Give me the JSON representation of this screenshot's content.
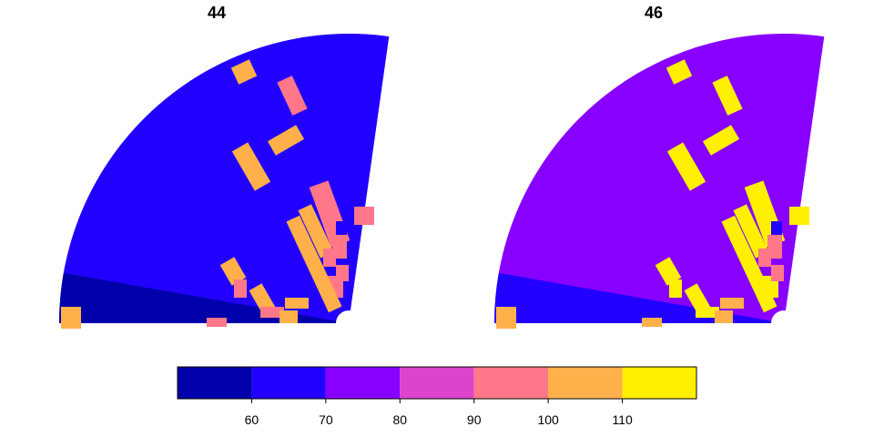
{
  "chart_data": {
    "type": "heatmap",
    "palette": [
      "#0000AA",
      "#2200FF",
      "#8800FF",
      "#DD44CC",
      "#FF7788",
      "#FFB04A",
      "#FFF000"
    ],
    "bins": [
      50,
      60,
      70,
      80,
      90,
      100,
      110,
      120
    ],
    "panels": [
      {
        "title": "44",
        "background": "#2200FF",
        "low_sector_color": "#0000AA",
        "cells": [
          {
            "color": "#FFB04A"
          },
          {
            "color": "#FF7788"
          },
          {
            "color": "#FFB04A"
          },
          {
            "color": "#FFB04A"
          },
          {
            "color": "#FF7788"
          },
          {
            "color": "#FFB04A"
          },
          {
            "color": "#FF7788"
          },
          {
            "color": "#FF7788"
          },
          {
            "color": "#2200FF"
          },
          {
            "color": "#FF7788"
          },
          {
            "color": "#FFB04A"
          },
          {
            "color": "#FF7788"
          },
          {
            "color": "#FF7788"
          },
          {
            "color": "#FFB04A"
          },
          {
            "color": "#FF7788"
          },
          {
            "color": "#FFB04A"
          },
          {
            "color": "#FF7788"
          },
          {
            "color": "#FFB04A"
          },
          {
            "color": "#FFB04A"
          },
          {
            "color": "#FF7788"
          },
          {
            "color": "#FFB04A"
          }
        ]
      },
      {
        "title": "46",
        "background": "#8800FF",
        "low_sector_color": "#2200FF",
        "cells": [
          {
            "color": "#FFF000"
          },
          {
            "color": "#FFF000"
          },
          {
            "color": "#FFF000"
          },
          {
            "color": "#FFF000"
          },
          {
            "color": "#FFF000"
          },
          {
            "color": "#FFF000"
          },
          {
            "color": "#FFF000"
          },
          {
            "color": "#FFF000"
          },
          {
            "color": "#2200FF"
          },
          {
            "color": "#FF7788"
          },
          {
            "color": "#FFF000"
          },
          {
            "color": "#FF7788"
          },
          {
            "color": "#FF7788"
          },
          {
            "color": "#FFF000"
          },
          {
            "color": "#FFF000"
          },
          {
            "color": "#FFF000"
          },
          {
            "color": "#FFF000"
          },
          {
            "color": "#FFB04A"
          },
          {
            "color": "#FFB04A"
          },
          {
            "color": "#FFB04A"
          },
          {
            "color": "#FFB04A"
          }
        ]
      }
    ],
    "colorbar": {
      "tick_values": [
        60,
        70,
        80,
        90,
        100,
        110
      ],
      "tick_labels": [
        "60",
        "70",
        "80",
        "90",
        "100",
        "110"
      ]
    }
  }
}
